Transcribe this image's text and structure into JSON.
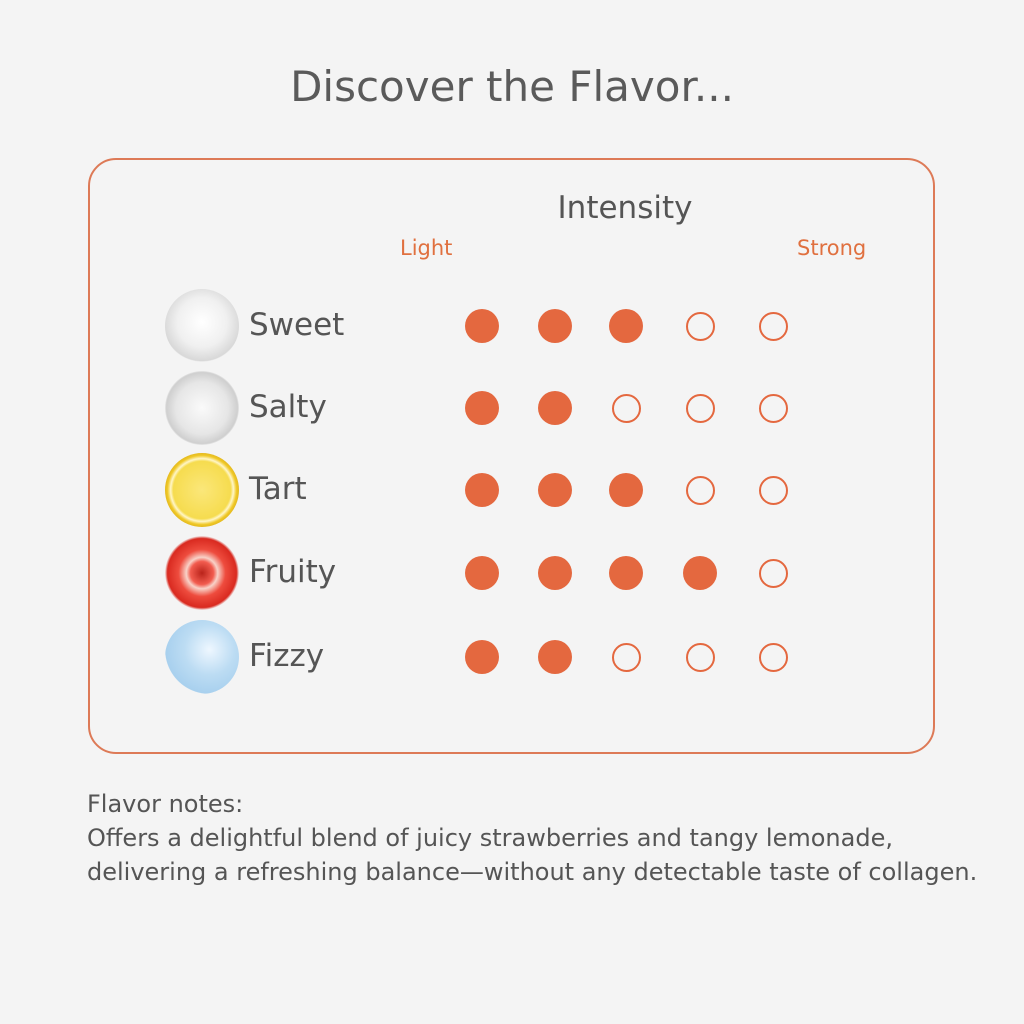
{
  "title": "Discover the Flavor...",
  "scale": {
    "heading": "Intensity",
    "min_label": "Light",
    "max_label": "Strong",
    "max": 5
  },
  "accent_color": "#e4683f",
  "flavors": [
    {
      "name": "Sweet",
      "icon": "sugar-icon",
      "rating": 3
    },
    {
      "name": "Salty",
      "icon": "salt-icon",
      "rating": 2
    },
    {
      "name": "Tart",
      "icon": "lemon-icon",
      "rating": 3
    },
    {
      "name": "Fruity",
      "icon": "strawberry-icon",
      "rating": 4
    },
    {
      "name": "Fizzy",
      "icon": "bubbles-icon",
      "rating": 2
    }
  ],
  "notes": {
    "title": "Flavor notes:",
    "text": "Offers a delightful blend of juicy strawberries and tangy lemonade, delivering a refreshing balance—without any detectable taste of collagen."
  }
}
